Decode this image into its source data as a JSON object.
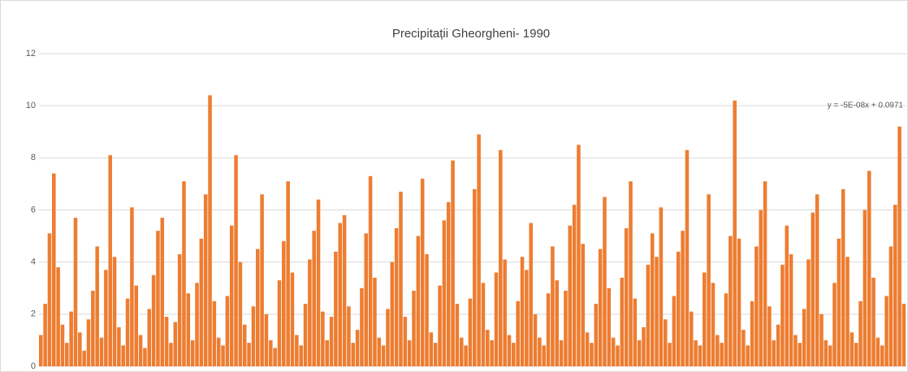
{
  "chart_data": {
    "type": "bar",
    "title": "Precipitații Gheorgheni- 1990",
    "annotation": "y = -5E-08x + 0.0971",
    "color": "#ed7d31",
    "ylim": [
      0,
      12
    ],
    "yticks": [
      0,
      2,
      4,
      6,
      8,
      10,
      12
    ],
    "grid": true,
    "values": [
      1.2,
      2.4,
      5.1,
      7.4,
      3.8,
      1.6,
      0.9,
      2.1,
      5.7,
      1.3,
      0.6,
      1.8,
      2.9,
      4.6,
      1.1,
      3.7,
      8.1,
      4.2,
      1.5,
      0.8,
      2.6,
      6.1,
      3.1,
      1.2,
      0.7,
      2.2,
      3.5,
      5.2,
      5.7,
      1.9,
      0.9,
      1.7,
      4.3,
      7.1,
      2.8,
      1.0,
      3.2,
      4.9,
      6.6,
      10.4,
      2.5,
      1.1,
      0.8,
      2.7,
      5.4,
      8.1,
      4.0,
      1.6,
      0.9,
      2.3,
      4.5,
      6.6,
      2.0,
      1.0,
      0.7,
      3.3,
      4.8,
      7.1,
      3.6,
      1.2,
      0.8,
      2.4,
      4.1,
      5.2,
      6.4,
      2.1,
      1.0,
      1.9,
      4.4,
      5.5,
      5.8,
      2.3,
      0.9,
      1.4,
      3.0,
      5.1,
      7.3,
      3.4,
      1.1,
      0.8,
      2.2,
      4.0,
      5.3,
      6.7,
      1.9,
      1.0,
      2.9,
      5.0,
      7.2,
      4.3,
      1.3,
      0.9,
      3.1,
      5.6,
      6.3,
      7.9,
      2.4,
      1.1,
      0.8,
      2.6,
      6.8,
      8.9,
      3.2,
      1.4,
      1.0,
      3.6,
      8.3,
      4.1,
      1.2,
      0.9,
      2.5,
      4.2,
      3.7,
      5.5,
      2.0,
      1.1,
      0.8,
      2.8,
      4.6,
      3.3,
      1.0,
      2.9,
      5.4,
      6.2,
      8.5,
      4.7,
      1.3,
      0.9,
      2.4,
      4.5,
      6.5,
      3.0,
      1.1,
      0.8,
      3.4,
      5.3,
      7.1,
      2.6,
      1.0,
      1.5,
      3.9,
      5.1,
      4.2,
      6.1,
      1.8,
      0.9,
      2.7,
      4.4,
      5.2,
      8.3,
      2.1,
      1.0,
      0.8,
      3.6,
      6.6,
      3.2,
      1.2,
      0.9,
      2.8,
      5.0,
      10.2,
      4.9,
      1.4,
      0.8,
      2.5,
      4.6,
      6.0,
      7.1,
      2.3,
      1.0,
      1.6,
      3.9,
      5.4,
      4.3,
      1.2,
      0.9,
      2.2,
      4.1,
      5.9,
      6.6,
      2.0,
      1.0,
      0.8,
      3.2,
      4.9,
      6.8,
      4.2,
      1.3,
      0.9,
      2.5,
      6.0,
      7.5,
      3.4,
      1.1,
      0.8,
      2.7,
      4.6,
      6.2,
      9.2,
      2.4
    ]
  }
}
